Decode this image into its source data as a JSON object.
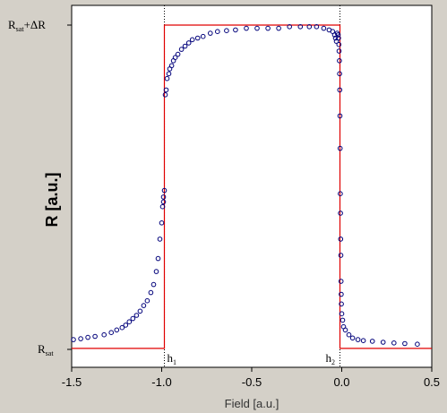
{
  "chart_data": {
    "type": "scatter",
    "xlabel": "Field [a.u.]",
    "ylabel": "R [a.u.]",
    "xlim": [
      -1.5,
      0.5
    ],
    "ylim": [
      0,
      1
    ],
    "x_ticks": [
      "-1.5",
      "-1.0",
      "-0.5",
      "0.0",
      "0.5"
    ],
    "y_levels": [
      {
        "label_main": "R",
        "label_sub": "sat",
        "label_suffix": "",
        "value": 0
      },
      {
        "label_main": "R",
        "label_sub": "sat",
        "label_suffix": "+ΔR",
        "value": 1
      }
    ],
    "markers": [
      {
        "label_main": "h",
        "label_sub": "1",
        "x": -0.985
      },
      {
        "label_main": "h",
        "label_sub": "2",
        "x": -0.01
      }
    ],
    "grid": false,
    "colors": {
      "points": "#00007a",
      "step_line": "#e00000",
      "marker_line": "#000000",
      "background": "#d4d0c8",
      "plot_bg": "#ffffff"
    },
    "series": [
      {
        "style": "step-line",
        "x": [
          -1.5,
          -0.985,
          -0.985,
          -0.01,
          -0.01,
          0.5
        ],
        "y": [
          0.003,
          0.003,
          1.0,
          1.0,
          0.003,
          0.003
        ]
      },
      {
        "style": "open-circle",
        "x": [
          -1.49,
          -1.45,
          -1.41,
          -1.37,
          -1.32,
          -1.28,
          -1.25,
          -1.22,
          -1.2,
          -1.18,
          -1.16,
          -1.14,
          -1.12,
          -1.1,
          -1.08,
          -1.06,
          -1.045,
          -1.03,
          -1.02,
          -1.01,
          -1.0,
          -0.995,
          -0.99,
          -0.99,
          -0.985,
          -0.98,
          -0.975,
          -0.97,
          -0.96,
          -0.955,
          -0.945,
          -0.935,
          -0.925,
          -0.91,
          -0.89,
          -0.87,
          -0.85,
          -0.83,
          -0.8,
          -0.77,
          -0.73,
          -0.69,
          -0.64,
          -0.59,
          -0.53,
          -0.47,
          -0.41,
          -0.35,
          -0.29,
          -0.23,
          -0.18,
          -0.14,
          -0.1,
          -0.07,
          -0.05,
          -0.04,
          -0.035,
          -0.03,
          -0.025,
          -0.02,
          -0.018,
          -0.016,
          -0.015,
          -0.013,
          -0.012,
          -0.011,
          -0.01,
          -0.009,
          -0.008,
          -0.007,
          -0.006,
          -0.005,
          -0.004,
          -0.003,
          -0.002,
          0.0,
          0.005,
          0.01,
          0.02,
          0.04,
          0.06,
          0.09,
          0.12,
          0.17,
          0.23,
          0.29,
          0.35,
          0.42
        ],
        "y": [
          0.03,
          0.033,
          0.037,
          0.04,
          0.045,
          0.052,
          0.06,
          0.067,
          0.075,
          0.085,
          0.095,
          0.105,
          0.118,
          0.135,
          0.15,
          0.175,
          0.2,
          0.24,
          0.28,
          0.34,
          0.39,
          0.44,
          0.455,
          0.47,
          0.49,
          0.785,
          0.8,
          0.835,
          0.85,
          0.865,
          0.875,
          0.89,
          0.9,
          0.91,
          0.925,
          0.935,
          0.945,
          0.955,
          0.96,
          0.965,
          0.975,
          0.98,
          0.983,
          0.985,
          0.99,
          0.99,
          0.99,
          0.99,
          0.995,
          0.995,
          0.995,
          0.995,
          0.99,
          0.985,
          0.98,
          0.97,
          0.96,
          0.95,
          0.975,
          0.97,
          0.96,
          0.94,
          0.92,
          0.89,
          0.85,
          0.8,
          0.72,
          0.62,
          0.48,
          0.42,
          0.34,
          0.29,
          0.21,
          0.17,
          0.14,
          0.11,
          0.09,
          0.07,
          0.06,
          0.045,
          0.035,
          0.03,
          0.027,
          0.025,
          0.022,
          0.02,
          0.018,
          0.016
        ]
      }
    ]
  }
}
